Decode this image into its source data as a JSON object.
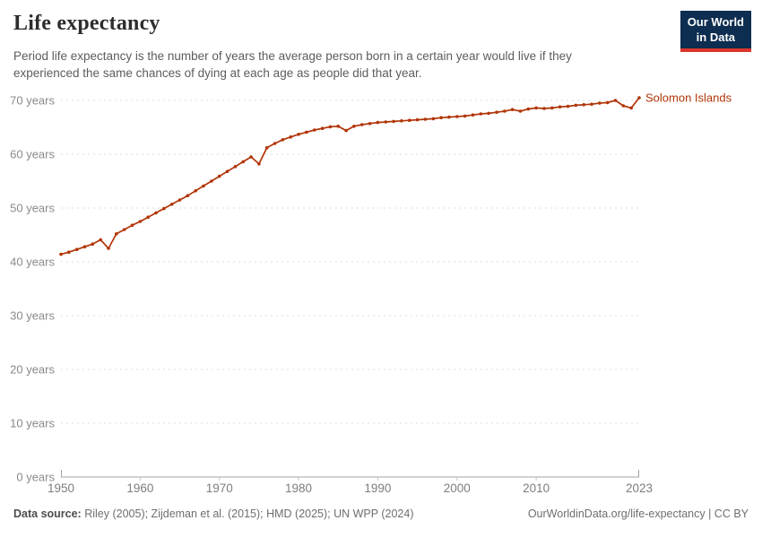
{
  "header": {
    "title": "Life expectancy",
    "subtitle": "Period life expectancy is the number of years the average person born in a certain year would live if they experienced the same chances of dying at each age as people did that year.",
    "logo_line1": "Our World",
    "logo_line2": "in Data"
  },
  "footer": {
    "source_label": "Data source:",
    "sources": "Riley (2005); Zijdeman et al. (2015); HMD (2025); UN WPP (2024)",
    "credit": "OurWorldinData.org/life-expectancy | CC BY"
  },
  "colors": {
    "series_line": "#B13507",
    "logo_bg": "#0d2d51",
    "logo_accent": "#dc352c",
    "gridline": "#dedede",
    "axis_line": "#a3a3a3",
    "tick_text": "#7d7d7d",
    "y_label_text": "#8a8a8a"
  },
  "chart_data": {
    "type": "line",
    "title": "Life expectancy",
    "entity_label": "Solomon Islands",
    "xlabel": "",
    "ylabel": "years",
    "xlim": [
      1950,
      2023
    ],
    "ylim": [
      0,
      70
    ],
    "grid": "dashed-horizontal",
    "legend": "end-of-line-label",
    "x_ticks": [
      1950,
      1960,
      1970,
      1980,
      1990,
      2000,
      2010,
      2023
    ],
    "y_ticks": [
      0,
      10,
      20,
      30,
      40,
      50,
      60,
      70
    ],
    "y_tick_suffix": " years",
    "x": [
      1950,
      1951,
      1952,
      1953,
      1954,
      1955,
      1956,
      1957,
      1958,
      1959,
      1960,
      1961,
      1962,
      1963,
      1964,
      1965,
      1966,
      1967,
      1968,
      1969,
      1970,
      1971,
      1972,
      1973,
      1974,
      1975,
      1976,
      1977,
      1978,
      1979,
      1980,
      1981,
      1982,
      1983,
      1984,
      1985,
      1986,
      1987,
      1988,
      1989,
      1990,
      1991,
      1992,
      1993,
      1994,
      1995,
      1996,
      1997,
      1998,
      1999,
      2000,
      2001,
      2002,
      2003,
      2004,
      2005,
      2006,
      2007,
      2008,
      2009,
      2010,
      2011,
      2012,
      2013,
      2014,
      2015,
      2016,
      2017,
      2018,
      2019,
      2020,
      2021,
      2022,
      2023
    ],
    "series": [
      {
        "name": "Solomon Islands",
        "color": "#B13507",
        "values": [
          41.4,
          41.8,
          42.3,
          42.8,
          43.3,
          44.1,
          42.5,
          45.2,
          46.0,
          46.8,
          47.5,
          48.3,
          49.1,
          49.9,
          50.7,
          51.5,
          52.3,
          53.2,
          54.1,
          55.0,
          55.9,
          56.8,
          57.7,
          58.6,
          59.5,
          58.2,
          61.2,
          62.0,
          62.7,
          63.2,
          63.7,
          64.1,
          64.5,
          64.8,
          65.1,
          65.2,
          64.4,
          65.2,
          65.5,
          65.7,
          65.9,
          66.0,
          66.1,
          66.2,
          66.3,
          66.4,
          66.5,
          66.6,
          66.8,
          66.9,
          67.0,
          67.1,
          67.3,
          67.5,
          67.6,
          67.8,
          68.0,
          68.3,
          68.0,
          68.4,
          68.6,
          68.5,
          68.6,
          68.8,
          68.9,
          69.1,
          69.2,
          69.3,
          69.5,
          69.6,
          70.0,
          69.0,
          68.6,
          70.5
        ]
      }
    ]
  }
}
